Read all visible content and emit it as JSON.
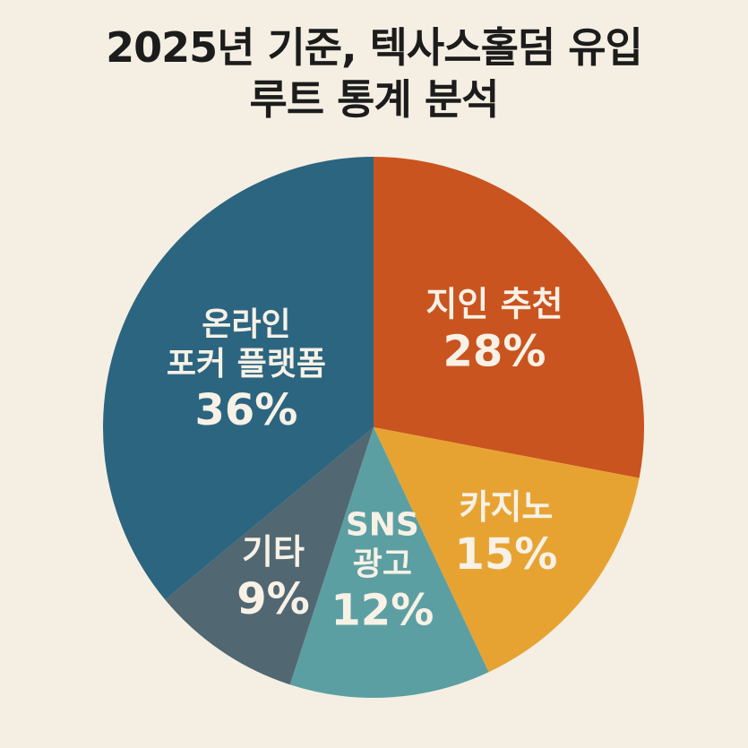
{
  "chart_data": {
    "type": "pie",
    "title_lines": [
      "2025년 기준, 텍사스홀덤 유입",
      "루트 통계 분석"
    ],
    "slices": [
      {
        "label_lines": [
          "지인 추천"
        ],
        "value": 28,
        "value_label": "28%",
        "color": "#c9541f"
      },
      {
        "label_lines": [
          "카지노"
        ],
        "value": 15,
        "value_label": "15%",
        "color": "#e7a332"
      },
      {
        "label_lines": [
          "SNS",
          "광고"
        ],
        "value": 12,
        "value_label": "12%",
        "color": "#5c9fa2"
      },
      {
        "label_lines": [
          "기타"
        ],
        "value": 9,
        "value_label": "9%",
        "color": "#516772"
      },
      {
        "label_lines": [
          "온라인",
          "포커 플랫폼"
        ],
        "value": 36,
        "value_label": "36%",
        "color": "#2c6580"
      }
    ]
  }
}
